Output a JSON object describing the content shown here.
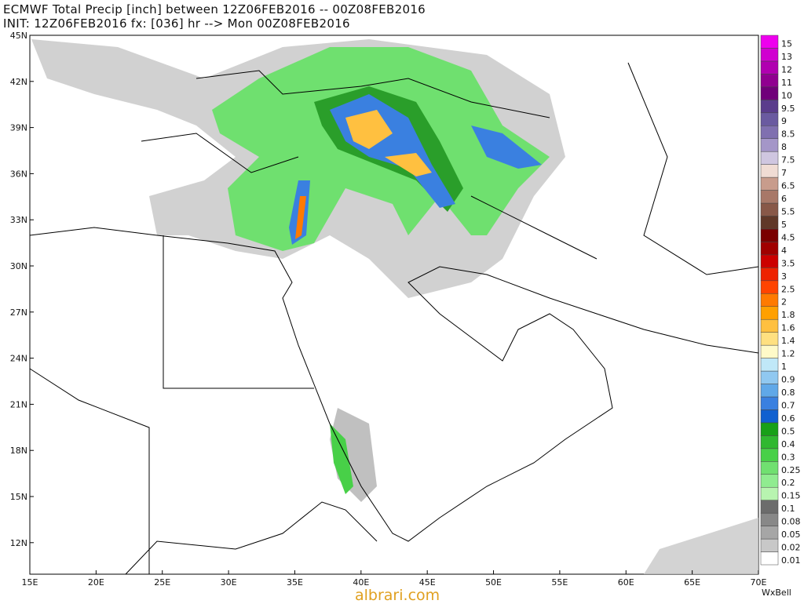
{
  "header": {
    "title_line1": "ECMWF Total Precip [inch] between 12Z06FEB2016 -- 00Z08FEB2016",
    "title_line2": "INIT: 12Z06FEB2016 fx: [036] hr --> Mon 00Z08FEB2016"
  },
  "map": {
    "lat_labels": [
      "45N",
      "42N",
      "39N",
      "36N",
      "33N",
      "30N",
      "27N",
      "24N",
      "21N",
      "18N",
      "15N",
      "12N"
    ],
    "lon_labels": [
      "15E",
      "20E",
      "25E",
      "30E",
      "35E",
      "40E",
      "45E",
      "50E",
      "55E",
      "60E",
      "65E",
      "70E"
    ]
  },
  "colorbar": {
    "levels": [
      {
        "label": "0.01",
        "color": "#ffffff"
      },
      {
        "label": "0.02",
        "color": "#c8c8c8"
      },
      {
        "label": "0.05",
        "color": "#a6a6a6"
      },
      {
        "label": "0.08",
        "color": "#888888"
      },
      {
        "label": "0.1",
        "color": "#6c6c6c"
      },
      {
        "label": "0.15",
        "color": "#b8f4b0"
      },
      {
        "label": "0.2",
        "color": "#90ec90"
      },
      {
        "label": "0.25",
        "color": "#70e070"
      },
      {
        "label": "0.3",
        "color": "#48d048"
      },
      {
        "label": "0.4",
        "color": "#30b830"
      },
      {
        "label": "0.5",
        "color": "#18a018"
      },
      {
        "label": "0.6",
        "color": "#1060d0"
      },
      {
        "label": "0.7",
        "color": "#3a80e0"
      },
      {
        "label": "0.8",
        "color": "#60a8e8"
      },
      {
        "label": "0.9",
        "color": "#90c8f0"
      },
      {
        "label": "1",
        "color": "#c0e8f8"
      },
      {
        "label": "1.2",
        "color": "#fffac8"
      },
      {
        "label": "1.4",
        "color": "#ffe080"
      },
      {
        "label": "1.6",
        "color": "#ffc040"
      },
      {
        "label": "1.8",
        "color": "#ffa000"
      },
      {
        "label": "2",
        "color": "#ff7a00"
      },
      {
        "label": "2.5",
        "color": "#ff4400"
      },
      {
        "label": "3",
        "color": "#ee2200"
      },
      {
        "label": "3.5",
        "color": "#cc0000"
      },
      {
        "label": "4",
        "color": "#a00000"
      },
      {
        "label": "4.5",
        "color": "#7a0000"
      },
      {
        "label": "5",
        "color": "#603828"
      },
      {
        "label": "5.5",
        "color": "#885848"
      },
      {
        "label": "6",
        "color": "#a87868"
      },
      {
        "label": "6.5",
        "color": "#c89c8c"
      },
      {
        "label": "7",
        "color": "#f0dcd4"
      },
      {
        "label": "7.5",
        "color": "#cfc6e0"
      },
      {
        "label": "8",
        "color": "#a496c8"
      },
      {
        "label": "8.5",
        "color": "#8070b0"
      },
      {
        "label": "9",
        "color": "#6a5aa0"
      },
      {
        "label": "9.5",
        "color": "#5a3c8c"
      },
      {
        "label": "10",
        "color": "#70007a"
      },
      {
        "label": "11",
        "color": "#900090"
      },
      {
        "label": "12",
        "color": "#b000b0"
      },
      {
        "label": "13",
        "color": "#d000d0"
      },
      {
        "label": "15",
        "color": "#ee00ee"
      }
    ]
  },
  "footer": {
    "watermark": "albrari.com",
    "brand": "WxBell"
  }
}
